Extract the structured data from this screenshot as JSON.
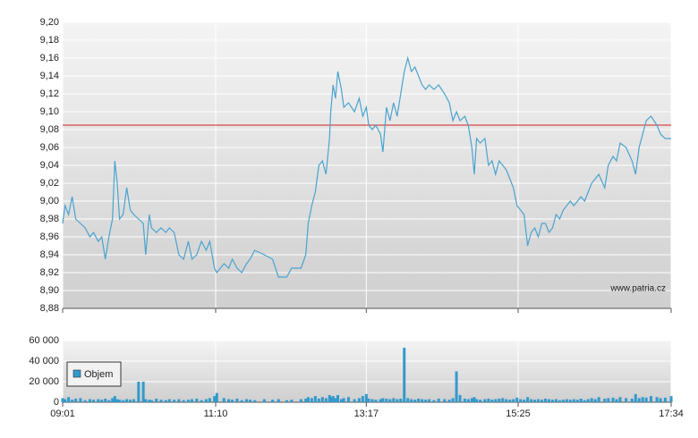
{
  "chart_data": [
    {
      "type": "line",
      "color": "#4aa3d0",
      "reference_line": 9.085,
      "reference_color": "#d42020",
      "grid": true,
      "watermark": "www.patria.cz",
      "xlim": [
        "09:01",
        "17:34"
      ],
      "xticks": [
        "09:01",
        "11:10",
        "13:17",
        "15:25",
        "17:34"
      ],
      "ylim": [
        8.88,
        9.2
      ],
      "yticks": [
        {
          "value": 8.88,
          "label": "8,88"
        },
        {
          "value": 8.9,
          "label": "8,90"
        },
        {
          "value": 8.92,
          "label": "8,92"
        },
        {
          "value": 8.94,
          "label": "8,94"
        },
        {
          "value": 8.96,
          "label": "8,96"
        },
        {
          "value": 8.98,
          "label": "8,98"
        },
        {
          "value": 9.0,
          "label": "9,00"
        },
        {
          "value": 9.02,
          "label": "9,02"
        },
        {
          "value": 9.04,
          "label": "9,04"
        },
        {
          "value": 9.06,
          "label": "9,06"
        },
        {
          "value": 9.08,
          "label": "9,08"
        },
        {
          "value": 9.1,
          "label": "9,10"
        },
        {
          "value": 9.12,
          "label": "9,12"
        },
        {
          "value": 9.14,
          "label": "9,14"
        },
        {
          "value": 9.16,
          "label": "9,16"
        },
        {
          "value": 9.18,
          "label": "9,18"
        },
        {
          "value": 9.2,
          "label": "9,20"
        }
      ],
      "x": [
        "09:01",
        "09:03",
        "09:06",
        "09:09",
        "09:12",
        "09:16",
        "09:20",
        "09:24",
        "09:27",
        "09:31",
        "09:34",
        "09:37",
        "09:40",
        "09:43",
        "09:45",
        "09:47",
        "09:49",
        "09:52",
        "09:55",
        "09:58",
        "10:01",
        "10:05",
        "10:09",
        "10:11",
        "10:14",
        "10:16",
        "10:20",
        "10:24",
        "10:28",
        "10:31",
        "10:35",
        "10:39",
        "10:43",
        "10:47",
        "10:50",
        "10:54",
        "10:58",
        "11:02",
        "11:05",
        "11:09",
        "11:11",
        "11:17",
        "11:21",
        "11:24",
        "11:28",
        "11:32",
        "11:36",
        "11:39",
        "11:43",
        "11:51",
        "11:58",
        "12:03",
        "12:10",
        "12:14",
        "12:22",
        "12:26",
        "12:28",
        "12:31",
        "12:34",
        "12:37",
        "12:40",
        "12:43",
        "12:46",
        "12:47",
        "12:49",
        "12:51",
        "12:53",
        "12:56",
        "12:58",
        "13:02",
        "13:07",
        "13:11",
        "13:14",
        "13:17",
        "13:19",
        "13:22",
        "13:25",
        "13:29",
        "13:31",
        "13:34",
        "13:37",
        "13:40",
        "13:43",
        "13:46",
        "13:49",
        "13:52",
        "13:55",
        "13:58",
        "14:01",
        "14:04",
        "14:07",
        "14:10",
        "14:14",
        "14:18",
        "14:23",
        "14:27",
        "14:30",
        "14:33",
        "14:36",
        "14:40",
        "14:43",
        "14:46",
        "14:48",
        "14:50",
        "14:53",
        "14:57",
        "15:00",
        "15:03",
        "15:06",
        "15:09",
        "15:12",
        "15:15",
        "15:18",
        "15:21",
        "15:24",
        "15:27",
        "15:30",
        "15:33",
        "15:36",
        "15:39",
        "15:42",
        "15:45",
        "15:48",
        "15:51",
        "15:54",
        "15:57",
        "16:00",
        "16:03",
        "16:06",
        "16:09",
        "16:12",
        "16:15",
        "16:18",
        "16:21",
        "16:24",
        "16:27",
        "16:30",
        "16:33",
        "16:38",
        "16:41",
        "16:45",
        "16:48",
        "16:51",
        "16:56",
        "17:01",
        "17:04",
        "17:07",
        "17:10",
        "17:13",
        "17:17",
        "17:22",
        "17:25",
        "17:29",
        "17:34"
      ],
      "values": [
        8.975,
        8.995,
        8.985,
        9.005,
        8.98,
        8.975,
        8.97,
        8.96,
        8.965,
        8.955,
        8.96,
        8.935,
        8.96,
        8.98,
        9.045,
        9.02,
        8.98,
        8.985,
        9.015,
        8.99,
        8.985,
        8.98,
        8.975,
        8.94,
        8.985,
        8.97,
        8.965,
        8.97,
        8.965,
        8.97,
        8.965,
        8.94,
        8.935,
        8.955,
        8.935,
        8.94,
        8.955,
        8.945,
        8.955,
        8.925,
        8.92,
        8.93,
        8.925,
        8.935,
        8.925,
        8.92,
        8.93,
        8.935,
        8.945,
        8.94,
        8.935,
        8.915,
        8.915,
        8.925,
        8.925,
        8.94,
        8.975,
        8.995,
        9.01,
        9.04,
        9.045,
        9.03,
        9.07,
        9.1,
        9.13,
        9.115,
        9.145,
        9.125,
        9.105,
        9.11,
        9.1,
        9.115,
        9.095,
        9.105,
        9.085,
        9.08,
        9.085,
        9.075,
        9.055,
        9.105,
        9.09,
        9.11,
        9.095,
        9.12,
        9.145,
        9.16,
        9.145,
        9.15,
        9.14,
        9.13,
        9.125,
        9.13,
        9.125,
        9.13,
        9.12,
        9.11,
        9.09,
        9.1,
        9.09,
        9.095,
        9.085,
        9.06,
        9.03,
        9.07,
        9.065,
        9.07,
        9.04,
        9.045,
        9.03,
        9.045,
        9.04,
        9.035,
        9.025,
        9.015,
        8.995,
        8.99,
        8.985,
        8.95,
        8.965,
        8.97,
        8.96,
        8.975,
        8.975,
        8.965,
        8.97,
        8.985,
        8.98,
        8.99,
        8.995,
        9.0,
        8.995,
        9.0,
        9.005,
        9.0,
        9.01,
        9.02,
        9.025,
        9.03,
        9.015,
        9.04,
        9.05,
        9.045,
        9.065,
        9.06,
        9.045,
        9.03,
        9.06,
        9.075,
        9.09,
        9.095,
        9.085,
        9.075,
        9.07,
        9.07
      ]
    },
    {
      "type": "bar",
      "color": "#3399cc",
      "grid": true,
      "legend": "Objem",
      "legend_corner": "upper left",
      "xlim": [
        "09:01",
        "17:34"
      ],
      "xticks": [
        "09:01",
        "11:10",
        "13:17",
        "15:25",
        "17:34"
      ],
      "ylim": [
        0,
        60000
      ],
      "yticks": [
        0,
        {
          "value": 20000,
          "label": "20 000"
        },
        {
          "value": 40000,
          "label": "40 000"
        },
        {
          "value": 60000,
          "label": "60 000"
        }
      ],
      "x": [
        "09:01",
        "09:03",
        "09:06",
        "09:09",
        "09:12",
        "09:16",
        "09:20",
        "09:24",
        "09:27",
        "09:31",
        "09:34",
        "09:37",
        "09:40",
        "09:43",
        "09:45",
        "09:47",
        "09:49",
        "09:52",
        "09:55",
        "09:58",
        "10:01",
        "10:05",
        "10:09",
        "10:11",
        "10:14",
        "10:16",
        "10:20",
        "10:24",
        "10:28",
        "10:31",
        "10:35",
        "10:39",
        "10:43",
        "10:47",
        "10:50",
        "10:54",
        "10:58",
        "11:02",
        "11:05",
        "11:09",
        "11:11",
        "11:17",
        "11:21",
        "11:24",
        "11:28",
        "11:32",
        "11:36",
        "11:39",
        "11:43",
        "11:51",
        "11:58",
        "12:03",
        "12:10",
        "12:14",
        "12:22",
        "12:26",
        "12:28",
        "12:31",
        "12:34",
        "12:37",
        "12:40",
        "12:43",
        "12:46",
        "12:47",
        "12:49",
        "12:51",
        "12:53",
        "12:56",
        "12:58",
        "13:02",
        "13:07",
        "13:11",
        "13:14",
        "13:17",
        "13:19",
        "13:22",
        "13:25",
        "13:29",
        "13:31",
        "13:34",
        "13:37",
        "13:40",
        "13:43",
        "13:46",
        "13:49",
        "13:52",
        "13:55",
        "13:58",
        "14:01",
        "14:04",
        "14:07",
        "14:10",
        "14:14",
        "14:18",
        "14:23",
        "14:27",
        "14:30",
        "14:33",
        "14:36",
        "14:40",
        "14:43",
        "14:46",
        "14:48",
        "14:50",
        "14:53",
        "14:57",
        "15:00",
        "15:03",
        "15:06",
        "15:09",
        "15:12",
        "15:15",
        "15:18",
        "15:21",
        "15:24",
        "15:27",
        "15:30",
        "15:33",
        "15:36",
        "15:39",
        "15:42",
        "15:45",
        "15:48",
        "15:51",
        "15:54",
        "15:57",
        "16:00",
        "16:03",
        "16:06",
        "16:09",
        "16:12",
        "16:15",
        "16:18",
        "16:21",
        "16:24",
        "16:27",
        "16:30",
        "16:33",
        "16:38",
        "16:41",
        "16:45",
        "16:48",
        "16:51",
        "16:56",
        "17:01",
        "17:04",
        "17:07",
        "17:10",
        "17:13",
        "17:17",
        "17:22",
        "17:25",
        "17:29",
        "17:34"
      ],
      "values": [
        4000,
        3000,
        5000,
        2500,
        3500,
        4000,
        2000,
        3000,
        2500,
        3000,
        2500,
        3500,
        2000,
        4000,
        6000,
        3000,
        2500,
        2000,
        3000,
        2500,
        3000,
        20000,
        20000,
        3000,
        2500,
        2000,
        3500,
        2500,
        2000,
        3000,
        2500,
        3000,
        2000,
        2500,
        3000,
        3500,
        2000,
        3000,
        4000,
        6000,
        9000,
        4000,
        3000,
        2500,
        3500,
        2000,
        3000,
        2500,
        2000,
        3000,
        2500,
        3000,
        2000,
        2500,
        3000,
        3500,
        5000,
        4000,
        6000,
        3500,
        5000,
        4000,
        7000,
        5000,
        6000,
        4000,
        7000,
        3000,
        4000,
        5000,
        3000,
        4000,
        6000,
        8000,
        3500,
        3000,
        2500,
        3000,
        4000,
        3500,
        3000,
        4000,
        3000,
        3500,
        53000,
        4000,
        3000,
        2500,
        3500,
        3000,
        2500,
        3000,
        2000,
        3500,
        3000,
        2500,
        4000,
        30000,
        7000,
        3500,
        3000,
        4000,
        5000,
        3000,
        2500,
        3000,
        3500,
        2500,
        3000,
        3500,
        4000,
        3000,
        2500,
        3000,
        4500,
        3000,
        2500,
        5000,
        3000,
        2500,
        3000,
        2500,
        3500,
        3000,
        2500,
        3000,
        2000,
        2500,
        3000,
        2500,
        3000,
        2500,
        3500,
        2000,
        3000,
        4000,
        3000,
        5000,
        3500,
        4000,
        4500,
        3000,
        5000,
        4000,
        3500,
        8000,
        4000,
        5000,
        4500,
        6000,
        5000,
        4000,
        4500,
        6000
      ]
    }
  ]
}
